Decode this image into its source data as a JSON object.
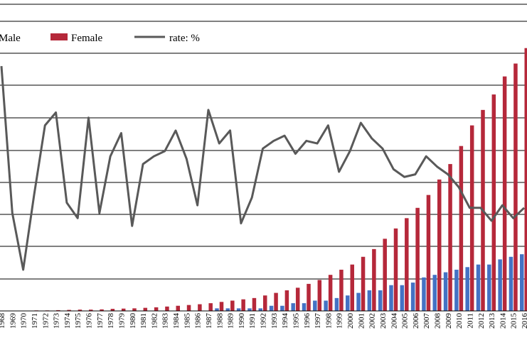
{
  "chart_data": {
    "type": "bar",
    "categories": [
      "1968",
      "1969",
      "1970",
      "1971",
      "1972",
      "1973",
      "1974",
      "1975",
      "1976",
      "1977",
      "1978",
      "1979",
      "1980",
      "1981",
      "1982",
      "1983",
      "1984",
      "1985",
      "1986",
      "1987",
      "1988",
      "1989",
      "1990",
      "1991",
      "1992",
      "1993",
      "1994",
      "1995",
      "1996",
      "1997",
      "1998",
      "1999",
      "2000",
      "2001",
      "2002",
      "2003",
      "2004",
      "2005",
      "2006",
      "2007",
      "2008",
      "2009",
      "2010",
      "2011",
      "2012",
      "2013",
      "2014",
      "2015",
      "2016"
    ],
    "series": [
      {
        "name": "Male",
        "kind": "bar",
        "color": "#4472c4",
        "values": [
          0,
          0,
          0,
          0,
          0,
          0,
          0,
          0,
          0,
          0,
          0,
          0,
          0,
          0,
          0,
          0,
          0,
          0,
          0,
          0,
          1,
          1,
          1,
          1,
          1,
          2,
          2,
          3,
          3,
          4,
          4,
          5,
          6,
          7,
          8,
          8,
          10,
          10,
          11,
          13,
          14,
          15,
          16,
          17,
          18,
          18,
          20,
          21,
          22
        ]
      },
      {
        "name": "Female",
        "kind": "bar",
        "color": "#b5283a",
        "values": [
          0.1,
          0.1,
          0.1,
          0.2,
          0.2,
          0.3,
          0.4,
          0.5,
          0.5,
          0.6,
          0.8,
          0.9,
          1,
          1.2,
          1.4,
          1.7,
          2,
          2.3,
          2.6,
          3,
          3.5,
          4,
          4.5,
          5,
          6,
          7,
          8,
          9,
          10.5,
          12,
          14,
          16,
          18,
          21,
          24,
          28,
          32,
          36,
          40,
          45,
          51,
          57,
          64,
          72,
          78,
          84,
          91,
          96,
          102
        ]
      },
      {
        "name": "rate: %",
        "kind": "line",
        "color": "#595959",
        "values": [
          95,
          38,
          16,
          45,
          72,
          77,
          42,
          36,
          75,
          38,
          60,
          69,
          33,
          57,
          60,
          62,
          70,
          59,
          41,
          78,
          65,
          70,
          34,
          44,
          63,
          66,
          68,
          61,
          66,
          65,
          72,
          54,
          62,
          73,
          67,
          63,
          55,
          52,
          53,
          60,
          56,
          53,
          48,
          40,
          40,
          35,
          41,
          36,
          40
        ]
      }
    ],
    "legend": {
      "placement": "top",
      "entries": [
        "Male",
        "Female",
        "rate: %"
      ]
    },
    "grid": true,
    "ylim": [
      0,
      100
    ]
  }
}
